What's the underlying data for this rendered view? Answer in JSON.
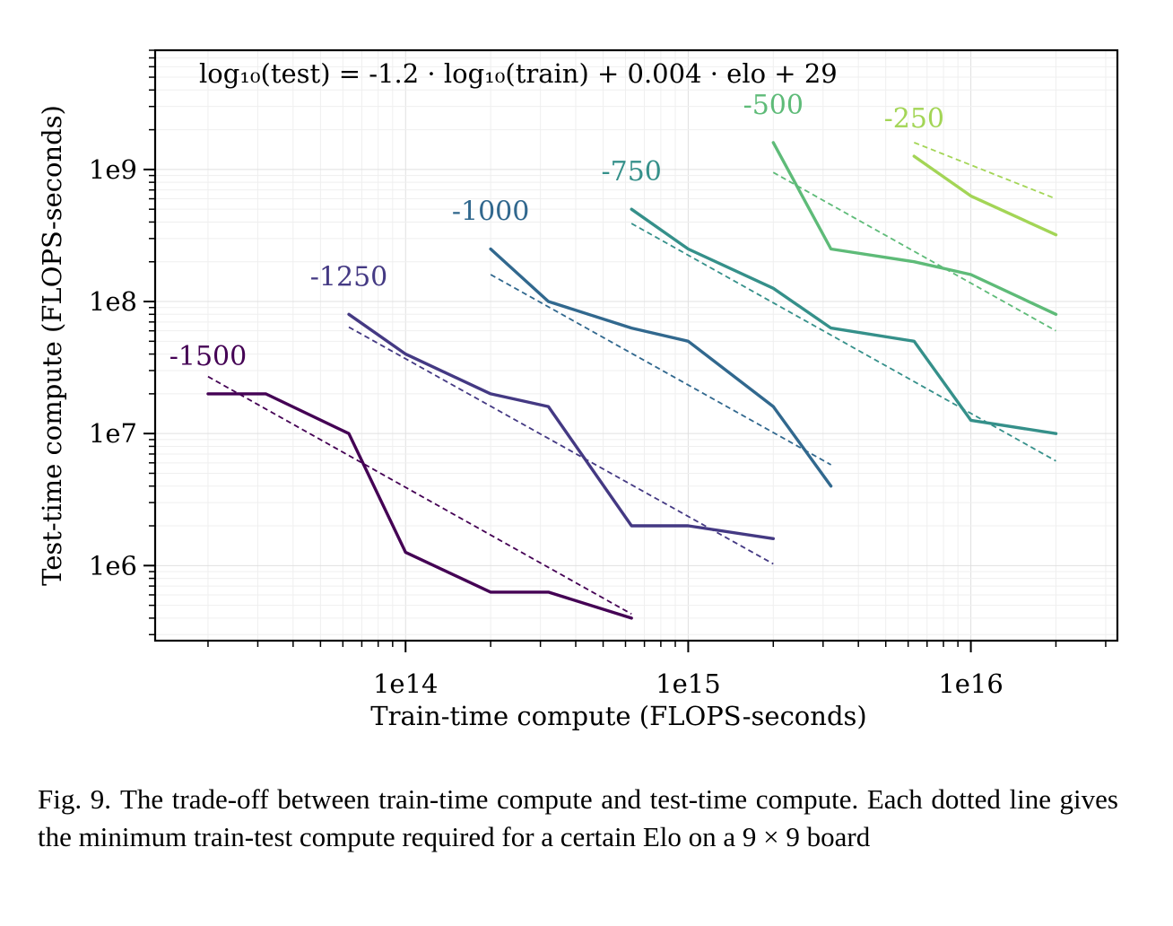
{
  "chart_data": {
    "type": "line",
    "title": "",
    "annotation": "log₁₀(test) = -1.2 · log₁₀(train) + 0.004 · elo + 29",
    "xlabel": "Train-time compute (FLOPS-seconds)",
    "ylabel": "Test-time compute (FLOPS-seconds)",
    "xscale": "log",
    "yscale": "log",
    "xlim": [
      13000000000000.0,
      3.3e+16
    ],
    "ylim": [
      270000.0,
      8000000000.0
    ],
    "x_ticks": [
      {
        "value": 100000000000000.0,
        "label": "1e14"
      },
      {
        "value": 1000000000000000.0,
        "label": "1e15"
      },
      {
        "value": 1e+16,
        "label": "1e16"
      }
    ],
    "y_ticks": [
      {
        "value": 1000000.0,
        "label": "1e6"
      },
      {
        "value": 10000000.0,
        "label": "1e7"
      },
      {
        "value": 100000000.0,
        "label": "1e8"
      },
      {
        "value": 1000000000.0,
        "label": "1e9"
      }
    ],
    "grid": true,
    "legend": "none",
    "series": [
      {
        "name": "-1500",
        "elo": -1500,
        "color": "#440154",
        "x": [
          20000000000000.0,
          32000000000000.0,
          63000000000000.0,
          100000000000000.0,
          200000000000000.0,
          320000000000000.0,
          630000000000000.0
        ],
        "y": [
          20000000.0,
          20000000.0,
          10000000.0,
          1260000.0,
          630000.0,
          630000.0,
          400000.0
        ]
      },
      {
        "name": "-1250",
        "elo": -1250,
        "color": "#443983",
        "x": [
          63000000000000.0,
          100000000000000.0,
          200000000000000.0,
          320000000000000.0,
          630000000000000.0,
          1000000000000000.0,
          2000000000000000.0
        ],
        "y": [
          80000000.0,
          40000000.0,
          20000000.0,
          16000000.0,
          2000000.0,
          2000000.0,
          1600000.0
        ]
      },
      {
        "name": "-1000",
        "elo": -1000,
        "color": "#31688e",
        "x": [
          200000000000000.0,
          320000000000000.0,
          630000000000000.0,
          1000000000000000.0,
          2000000000000000.0,
          3200000000000000.0
        ],
        "y": [
          250000000.0,
          100000000.0,
          63000000.0,
          50000000.0,
          16000000.0,
          4000000.0
        ]
      },
      {
        "name": "-750",
        "elo": -750,
        "color": "#35908a",
        "x": [
          630000000000000.0,
          1000000000000000.0,
          2000000000000000.0,
          3200000000000000.0,
          6300000000000000.0,
          1e+16,
          2e+16
        ],
        "y": [
          500000000.0,
          250000000.0,
          126000000.0,
          63000000.0,
          50000000.0,
          12600000.0,
          10000000.0
        ]
      },
      {
        "name": "-500",
        "elo": -500,
        "color": "#5ebb78",
        "x": [
          2000000000000000.0,
          3200000000000000.0,
          6300000000000000.0,
          1e+16,
          2e+16
        ],
        "y": [
          1600000000.0,
          250000000.0,
          200000000.0,
          160000000.0,
          80000000.0
        ]
      },
      {
        "name": "-250",
        "elo": -250,
        "color": "#a3d556",
        "x": [
          6300000000000000.0,
          1e+16,
          2e+16
        ],
        "y": [
          1260000000.0,
          630000000.0,
          320000000.0
        ]
      }
    ],
    "fit_lines": [
      {
        "elo": -1500,
        "x": [
          20000000000000.0,
          630000000000000.0
        ],
        "y": [
          27000000.0,
          430000.0
        ]
      },
      {
        "elo": -1250,
        "x": [
          63000000000000.0,
          2000000000000000.0
        ],
        "y": [
          64000000.0,
          1030000.0
        ]
      },
      {
        "elo": -1000,
        "x": [
          200000000000000.0,
          3200000000000000.0
        ],
        "y": [
          160000000.0,
          5800000.0
        ]
      },
      {
        "elo": -750,
        "x": [
          630000000000000.0,
          2e+16
        ],
        "y": [
          390000000.0,
          6200000.0
        ]
      },
      {
        "elo": -500,
        "x": [
          2000000000000000.0,
          2e+16
        ],
        "y": [
          950000000.0,
          60000000.0
        ]
      },
      {
        "elo": -250,
        "x": [
          6300000000000000.0,
          2e+16
        ],
        "y": [
          1600000000.0,
          600000000.0
        ]
      }
    ]
  },
  "caption": {
    "label": "Fig. 9.",
    "text": "The trade-off between train-time compute and test-time compute. Each dotted line gives the minimum train-test compute required for a certain Elo on a 9 × 9 board"
  }
}
